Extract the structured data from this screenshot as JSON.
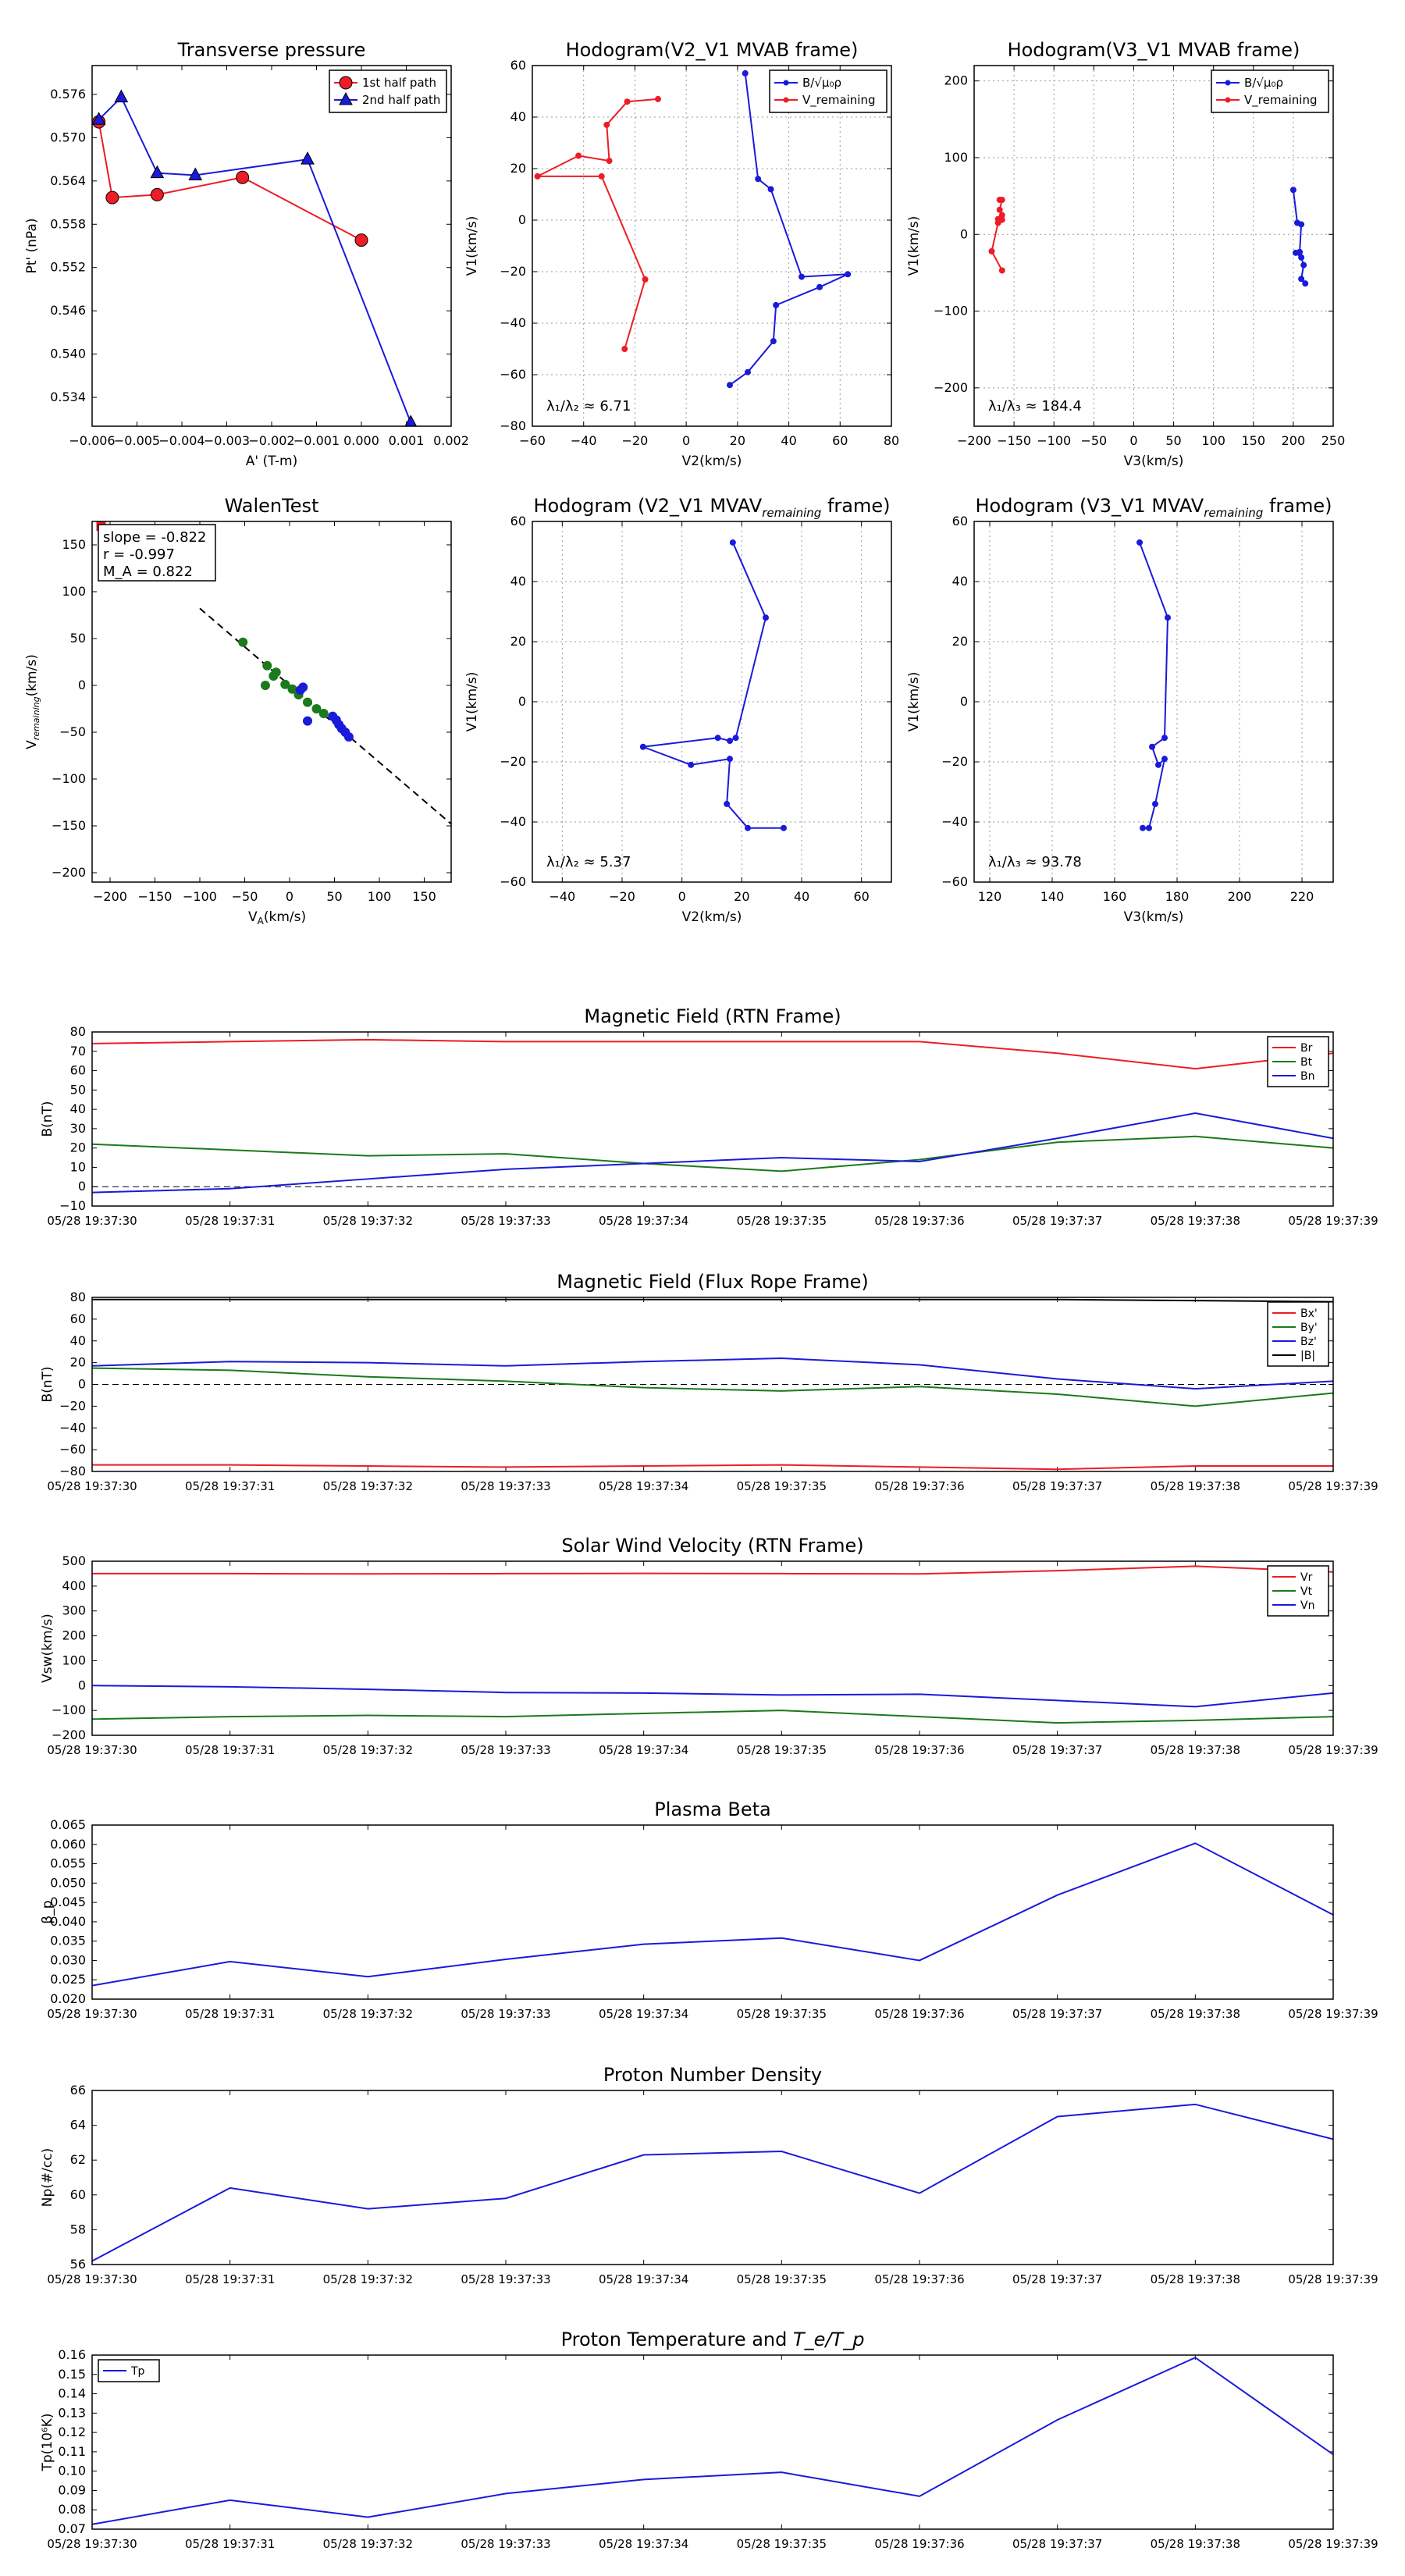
{
  "colors": {
    "red": "#ee1c25",
    "blue": "#1a1adb",
    "green": "#1b7a1b",
    "black": "#000000",
    "grid": "#9a9a9a"
  },
  "time_ticks": [
    "05/28 19:37:30",
    "05/28 19:37:31",
    "05/28 19:37:32",
    "05/28 19:37:33",
    "05/28 19:37:34",
    "05/28 19:37:35",
    "05/28 19:37:36",
    "05/28 19:37:37",
    "05/28 19:37:38",
    "05/28 19:37:39"
  ],
  "chart_data": [
    {
      "id": "transverse-pressure",
      "type": "line",
      "title": "Transverse pressure",
      "xlabel": "A' (T-m)",
      "ylabel": "Pt' (nPa)",
      "xlim": [
        -0.006,
        0.002
      ],
      "ylim": [
        0.53,
        0.58
      ],
      "xticks": [
        -0.006,
        -0.005,
        -0.004,
        -0.003,
        -0.002,
        -0.001,
        0.0,
        0.001,
        0.002
      ],
      "xtick_labels": [
        "−0.006",
        "−0.005",
        "−0.004",
        "−0.003",
        "−0.002",
        "−0.001",
        "0.000",
        "0.001",
        "0.002"
      ],
      "yticks": [
        0.534,
        0.54,
        0.546,
        0.552,
        0.558,
        0.564,
        0.57,
        0.576
      ],
      "yticks_labels": [
        "0.534",
        "0.540",
        "0.546",
        "0.552",
        "0.558",
        "0.564",
        "0.570",
        "0.576"
      ],
      "grid": false,
      "legend": "top-right",
      "series": [
        {
          "name": "1st half path",
          "color": "red",
          "marker": "circle",
          "x": [
            -0.00585,
            -0.00555,
            -0.00455,
            -0.00265,
            0.0
          ],
          "y": [
            0.5722,
            0.5617,
            0.5621,
            0.5645,
            0.5558
          ]
        },
        {
          "name": "2nd half path",
          "color": "blue",
          "marker": "triangle",
          "x": [
            -0.00585,
            -0.00535,
            -0.00455,
            -0.0037,
            -0.0012,
            0.0011
          ],
          "y": [
            0.5725,
            0.5756,
            0.5651,
            0.5648,
            0.567,
            0.5305
          ]
        }
      ]
    },
    {
      "id": "hodogram-v2-v1-mvab",
      "type": "line",
      "title": "Hodogram(V2_V1 MVAB frame)",
      "xlabel": "V2(km/s)",
      "ylabel": "V1(km/s)",
      "xlim": [
        -60,
        80
      ],
      "ylim": [
        -80,
        60
      ],
      "xticks": [
        -60,
        -40,
        -20,
        0,
        20,
        40,
        60,
        80
      ],
      "yticks": [
        -80,
        -60,
        -40,
        -20,
        0,
        20,
        40,
        60
      ],
      "grid": true,
      "legend": "top-right",
      "annotation": "λ₁/λ₂ ≈ 6.71",
      "series": [
        {
          "name": "B/√μ₀ρ",
          "color": "blue",
          "marker": "dot",
          "x": [
            23,
            28,
            33,
            45,
            63,
            52,
            35,
            34,
            24,
            17
          ],
          "y": [
            57,
            16,
            12,
            -22,
            -21,
            -26,
            -33,
            -47,
            -59,
            -64
          ]
        },
        {
          "name": "V_remaining",
          "color": "red",
          "marker": "dot",
          "x": [
            -11,
            -23,
            -31,
            -30,
            -42,
            -58,
            -33,
            -16,
            -24
          ],
          "y": [
            47,
            46,
            37,
            23,
            25,
            17,
            17,
            -23,
            -50
          ]
        }
      ]
    },
    {
      "id": "hodogram-v3-v1-mvab",
      "type": "line",
      "title": "Hodogram(V3_V1 MVAB frame)",
      "xlabel": "V3(km/s)",
      "ylabel": "V1(km/s)",
      "xlim": [
        -200,
        250
      ],
      "ylim": [
        -250,
        220
      ],
      "xticks": [
        -200,
        -150,
        -100,
        -50,
        0,
        50,
        100,
        150,
        200,
        250
      ],
      "yticks": [
        -200,
        -100,
        0,
        100,
        200
      ],
      "grid": true,
      "legend": "top-right",
      "annotation": "λ₁/λ₃ ≈ 184.4",
      "series": [
        {
          "name": "B/√μ₀ρ",
          "color": "blue",
          "marker": "dot",
          "x": [
            200,
            205,
            210,
            208,
            203,
            210,
            213,
            210,
            215
          ],
          "y": [
            58,
            15,
            13,
            -23,
            -24,
            -30,
            -40,
            -58,
            -64
          ]
        },
        {
          "name": "V_remaining",
          "color": "red",
          "marker": "dot",
          "x": [
            -168,
            -165,
            -168,
            -165,
            -170,
            -165,
            -170,
            -178,
            -165
          ],
          "y": [
            45,
            45,
            32,
            25,
            20,
            19,
            15,
            -22,
            -47
          ]
        }
      ]
    },
    {
      "id": "walen-test",
      "type": "scatter",
      "title": "WalenTest",
      "xlabel": "V_A(km/s)",
      "ylabel": "V_remaining(km/s)",
      "xlim": [
        -220,
        180
      ],
      "ylim": [
        -210,
        175
      ],
      "xticks": [
        -200,
        -150,
        -100,
        -50,
        0,
        50,
        100,
        150
      ],
      "yticks": [
        -200,
        -150,
        -100,
        -50,
        0,
        50,
        100,
        150
      ],
      "grid": false,
      "annotation_lines": [
        "slope = -0.822",
        "r = -0.997",
        "M_A = 0.822"
      ],
      "fit_line": {
        "slope": -0.822,
        "intercept": 0
      },
      "series": [
        {
          "name": "",
          "color": "green",
          "x": [
            -52,
            -25,
            -15,
            -18,
            -5,
            3,
            10,
            20,
            30,
            38,
            -27
          ],
          "y": [
            46,
            21,
            14,
            10,
            1,
            -4,
            -10,
            -18,
            -25,
            -30,
            0
          ]
        },
        {
          "name": "",
          "color": "blue",
          "x": [
            15,
            12,
            48,
            52,
            55,
            58,
            62,
            66,
            20
          ],
          "y": [
            -2,
            -5,
            -33,
            -37,
            -42,
            -46,
            -50,
            -55,
            -38
          ]
        },
        {
          "name": "",
          "color": "red",
          "x": [
            -210
          ],
          "y": [
            170
          ]
        }
      ]
    },
    {
      "id": "hodogram-v2-v1-mvav",
      "type": "line",
      "title": "Hodogram (V2_V1 MVAV",
      "title_sub": "remaining",
      "title_tail": " frame)",
      "xlabel": "V2(km/s)",
      "ylabel": "V1(km/s)",
      "xlim": [
        -50,
        70
      ],
      "ylim": [
        -60,
        60
      ],
      "xticks": [
        -40,
        -20,
        0,
        20,
        40,
        60
      ],
      "yticks": [
        -60,
        -40,
        -20,
        0,
        20,
        40,
        60
      ],
      "grid": true,
      "annotation": "λ₁/λ₂ ≈ 5.37",
      "series": [
        {
          "name": "",
          "color": "blue",
          "marker": "dot",
          "x": [
            17,
            28,
            18,
            16,
            12,
            -13,
            3,
            16,
            15,
            22,
            34
          ],
          "y": [
            53,
            28,
            -12,
            -13,
            -12,
            -15,
            -21,
            -19,
            -34,
            -42,
            -42
          ]
        }
      ]
    },
    {
      "id": "hodogram-v3-v1-mvav",
      "type": "line",
      "title": "Hodogram (V3_V1 MVAV",
      "title_sub": "remaining",
      "title_tail": " frame)",
      "xlabel": "V3(km/s)",
      "ylabel": "V1(km/s)",
      "xlim": [
        115,
        230
      ],
      "ylim": [
        -60,
        60
      ],
      "xticks": [
        120,
        140,
        160,
        180,
        200,
        220
      ],
      "yticks": [
        -60,
        -40,
        -20,
        0,
        20,
        40,
        60
      ],
      "grid": true,
      "annotation": "λ₁/λ₃ ≈ 93.78",
      "series": [
        {
          "name": "",
          "color": "blue",
          "marker": "dot",
          "x": [
            168,
            177,
            176,
            172,
            174,
            176,
            173,
            171,
            169
          ],
          "y": [
            53,
            28,
            -12,
            -15,
            -21,
            -19,
            -34,
            -42,
            -42
          ]
        }
      ]
    },
    {
      "id": "magnetic-field-rtn",
      "type": "line",
      "title": "Magnetic Field (RTN Frame)",
      "xlabel": "",
      "ylabel": "B(nT)",
      "xlim": [
        0,
        9
      ],
      "ylim": [
        -10,
        80
      ],
      "yticks": [
        -10,
        0,
        10,
        20,
        30,
        40,
        50,
        60,
        70,
        80
      ],
      "zero_line": true,
      "legend": "top-right",
      "series": [
        {
          "name": "Br",
          "color": "red",
          "values": [
            74,
            75,
            76,
            75,
            75,
            75,
            75,
            69,
            61,
            69
          ]
        },
        {
          "name": "Bt",
          "color": "green",
          "values": [
            22,
            19,
            16,
            17,
            12,
            8,
            14,
            23,
            26,
            20
          ]
        },
        {
          "name": "Bn",
          "color": "blue",
          "values": [
            -3,
            -1,
            4,
            9,
            12,
            15,
            13,
            25,
            38,
            25
          ]
        }
      ]
    },
    {
      "id": "magnetic-field-flux-rope",
      "type": "line",
      "title": "Magnetic Field (Flux Rope Frame)",
      "xlabel": "",
      "ylabel": "B(nT)",
      "xlim": [
        0,
        9
      ],
      "ylim": [
        -80,
        80
      ],
      "yticks": [
        -80,
        -60,
        -40,
        -20,
        0,
        20,
        40,
        60,
        80
      ],
      "zero_line": true,
      "legend": "top-right",
      "series": [
        {
          "name": "Bx'",
          "color": "red",
          "values": [
            -74,
            -74,
            -75,
            -76,
            -75,
            -74,
            -76,
            -78,
            -75,
            -75
          ]
        },
        {
          "name": "By'",
          "color": "green",
          "values": [
            15,
            13,
            7,
            3,
            -3,
            -6,
            -2,
            -9,
            -20,
            -8
          ]
        },
        {
          "name": "Bz'",
          "color": "blue",
          "values": [
            17,
            21,
            20,
            17,
            21,
            24,
            18,
            5,
            -4,
            3
          ]
        },
        {
          "name": "|B|",
          "color": "black",
          "values": [
            78,
            78,
            78,
            78,
            78,
            78,
            78,
            78,
            77,
            76
          ]
        }
      ]
    },
    {
      "id": "solar-wind-velocity",
      "type": "line",
      "title": "Solar Wind Velocity (RTN Frame)",
      "xlabel": "",
      "ylabel": "Vsw(km/s)",
      "xlim": [
        0,
        9
      ],
      "ylim": [
        -200,
        500
      ],
      "yticks": [
        -200,
        -100,
        0,
        100,
        200,
        300,
        400,
        500
      ],
      "legend": "top-right",
      "series": [
        {
          "name": "Vr",
          "color": "red",
          "values": [
            450,
            450,
            449,
            450,
            451,
            450,
            449,
            462,
            480,
            457
          ]
        },
        {
          "name": "Vt",
          "color": "green",
          "values": [
            -135,
            -125,
            -120,
            -125,
            -112,
            -100,
            -125,
            -150,
            -140,
            -125
          ]
        },
        {
          "name": "Vn",
          "color": "blue",
          "values": [
            0,
            -5,
            -15,
            -28,
            -30,
            -38,
            -35,
            -60,
            -85,
            -30
          ]
        }
      ]
    },
    {
      "id": "plasma-beta",
      "type": "line",
      "title": "Plasma Beta",
      "xlabel": "",
      "ylabel": "β_p",
      "xlim": [
        0,
        9
      ],
      "ylim": [
        0.02,
        0.065
      ],
      "yticks": [
        0.02,
        0.025,
        0.03,
        0.035,
        0.04,
        0.045,
        0.05,
        0.055,
        0.06,
        0.065
      ],
      "series": [
        {
          "name": "",
          "color": "blue",
          "values": [
            0.0235,
            0.0297,
            0.0258,
            0.0303,
            0.0342,
            0.0358,
            0.03,
            0.0469,
            0.0603,
            0.0418
          ]
        }
      ]
    },
    {
      "id": "proton-number-density",
      "type": "line",
      "title": "Proton Number Density",
      "xlabel": "",
      "ylabel": "Np(#/cc)",
      "xlim": [
        0,
        9
      ],
      "ylim": [
        56,
        66
      ],
      "yticks": [
        56,
        58,
        60,
        62,
        64,
        66
      ],
      "series": [
        {
          "name": "",
          "color": "blue",
          "values": [
            56.2,
            60.4,
            59.2,
            59.8,
            62.3,
            62.5,
            60.1,
            64.5,
            65.2,
            63.2
          ]
        }
      ]
    },
    {
      "id": "proton-temperature",
      "type": "line",
      "title": "Proton Temperature and ",
      "title_math": "T_e/T_p",
      "xlabel": "",
      "ylabel": "Tp(10⁶K)",
      "xlim": [
        0,
        9
      ],
      "ylim": [
        0.07,
        0.16
      ],
      "yticks": [
        0.07,
        0.08,
        0.09,
        0.1,
        0.11,
        0.12,
        0.13,
        0.14,
        0.15,
        0.16
      ],
      "legend": "top-left",
      "series": [
        {
          "name": "Tp",
          "color": "blue",
          "values": [
            0.0725,
            0.085,
            0.0762,
            0.0884,
            0.0957,
            0.0994,
            0.087,
            0.1265,
            0.1587,
            0.1086
          ]
        }
      ]
    }
  ]
}
